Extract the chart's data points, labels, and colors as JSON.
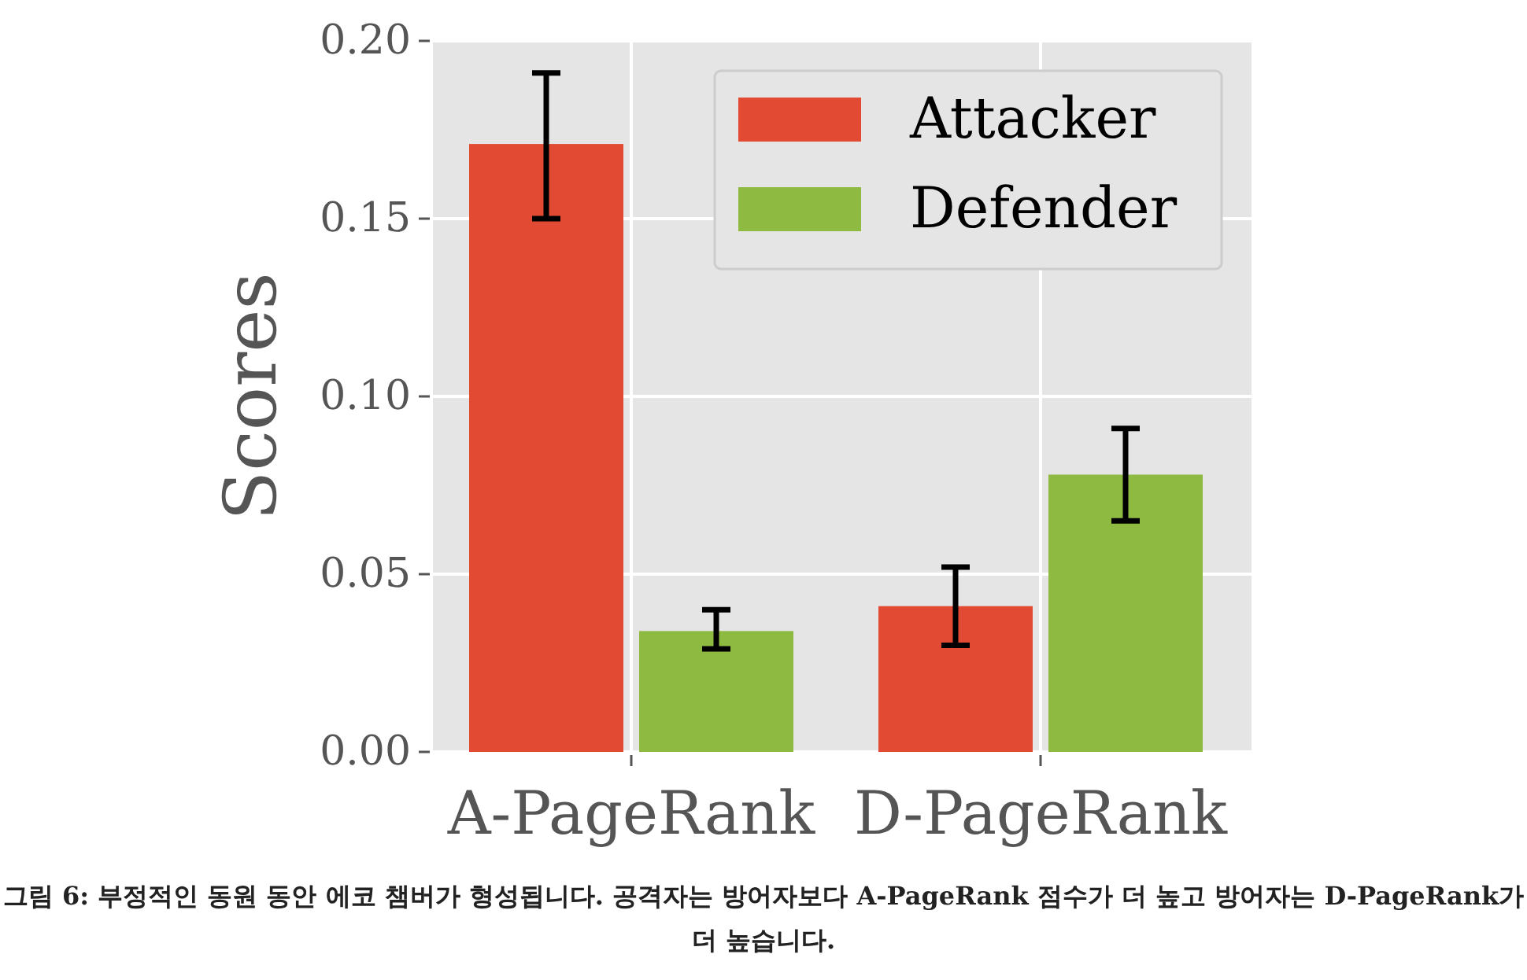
{
  "chart_data": {
    "type": "bar",
    "categories": [
      "A-PageRank",
      "D-PageRank"
    ],
    "series": [
      {
        "name": "Attacker",
        "color": "#e24a33",
        "values": [
          0.171,
          0.041
        ],
        "errors": [
          [
            0.15,
            0.191
          ],
          [
            0.03,
            0.052
          ]
        ]
      },
      {
        "name": "Defender",
        "color": "#8eba42",
        "values": [
          0.034,
          0.078
        ],
        "errors": [
          [
            0.029,
            0.04
          ],
          [
            0.065,
            0.091
          ]
        ]
      }
    ],
    "ylabel": "Scores",
    "ylim": [
      0,
      0.2
    ],
    "yticks": [
      {
        "value": 0,
        "label": "0.00"
      },
      {
        "value": 0.05,
        "label": "0.05"
      },
      {
        "value": 0.1,
        "label": "0.10"
      },
      {
        "value": 0.15,
        "label": "0.15"
      },
      {
        "value": 0.2,
        "label": "0.20"
      }
    ],
    "grid": true,
    "legend": "top right",
    "annotations": [
      "그림 6: 부정적인 동원 동안 에코 챔버가 형성됩니다. 공격자는 방어자보다 A-PageRank 점수가 더 높고 방어자는 D-PageRank가 더 높습니다."
    ]
  }
}
